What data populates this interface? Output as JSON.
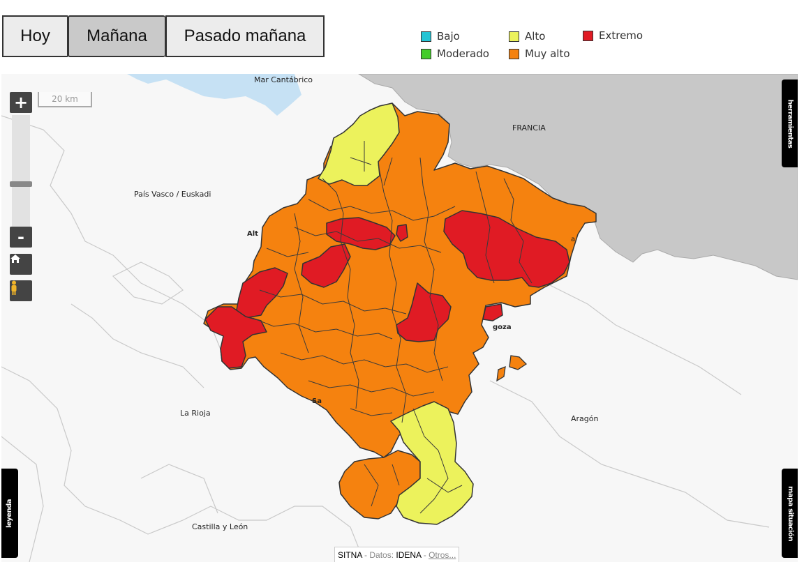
{
  "tabs": {
    "hoy": "Hoy",
    "manana": "Mañana",
    "pasado": "Pasado mañana",
    "active": "Mañana"
  },
  "legend": {
    "items": [
      {
        "label": "Bajo",
        "color": "#23c4d4"
      },
      {
        "label": "Moderado",
        "color": "#44cc2a"
      },
      {
        "label": "Alto",
        "color": "#ecf25c"
      },
      {
        "label": "Muy alto",
        "color": "#f5820f"
      },
      {
        "label": "Extremo",
        "color": "#e01b24"
      }
    ]
  },
  "map": {
    "scale_label": "20 km",
    "places": {
      "mar": "Mar Cantábrico",
      "francia": "FRANCIA",
      "pais_vasco": "País Vasco / Euskadi",
      "la_rioja": "La Rioja",
      "aragon": "Aragón",
      "castilla": "Castilla y León",
      "alt": "Alt",
      "goza": "goza",
      "sa": "Sa",
      "a": "a"
    },
    "colors": {
      "sea": "#c6e1f4",
      "france": "#c8c8c8",
      "land": "#f7f7f7",
      "border": "#3a3a3a"
    }
  },
  "controls": {
    "zoom_in": "+",
    "zoom_out": "-"
  },
  "side_tabs": {
    "herramientas": "herramientas",
    "leyenda": "leyenda",
    "mapa_situacion": "mapa situación"
  },
  "attribution": {
    "sitna": "SITNA",
    "sep1": " - Datos: ",
    "idena": "IDENA",
    "sep2": " - ",
    "otros": "Otros..."
  }
}
